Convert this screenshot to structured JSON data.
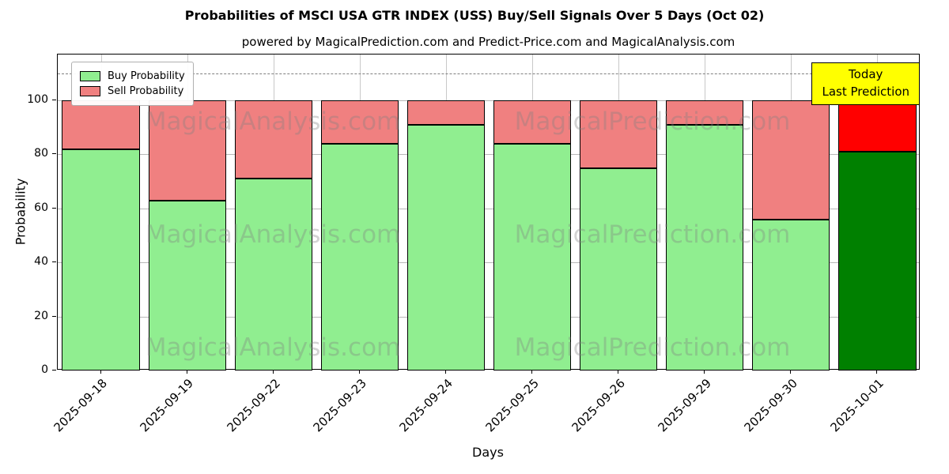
{
  "watermarks": {
    "left": "MagicalAnalysis.com",
    "right": "MagicalPrediction.com"
  },
  "annotation": {
    "line1": "Today",
    "line2": "Last Prediction",
    "bg_color": "#ffff00"
  },
  "legend": {
    "items": [
      {
        "label": "Buy Probability",
        "color": "#90ee90"
      },
      {
        "label": "Sell Probability",
        "color": "#f08080"
      }
    ]
  },
  "chart_data": {
    "type": "bar",
    "stacked": true,
    "title": "Probabilities of MSCI USA GTR INDEX (USS) Buy/Sell Signals Over 5 Days (Oct 02)",
    "subtitle": "powered by MagicalPrediction.com and Predict-Price.com and MagicalAnalysis.com",
    "xlabel": "Days",
    "ylabel": "Probability",
    "categories": [
      "2025-09-18",
      "2025-09-19",
      "2025-09-22",
      "2025-09-23",
      "2025-09-24",
      "2025-09-25",
      "2025-09-26",
      "2025-09-29",
      "2025-09-30",
      "2025-10-01"
    ],
    "series": [
      {
        "name": "Buy Probability",
        "color": "#90ee90",
        "values": [
          82,
          63,
          71,
          84,
          91,
          84,
          75,
          91,
          56,
          81
        ]
      },
      {
        "name": "Sell Probability",
        "color": "#f08080",
        "values": [
          18,
          37,
          29,
          16,
          9,
          16,
          25,
          9,
          44,
          19
        ]
      }
    ],
    "highlight_last_bar": {
      "buy_color": "#008000",
      "sell_color": "#ff0000"
    },
    "yticks": [
      0,
      20,
      40,
      60,
      80,
      100
    ],
    "ylim": [
      0,
      117
    ],
    "dashed_line_y": 110,
    "grid": true,
    "legend_position": "upper left",
    "bar_edge_color": "#000000"
  }
}
